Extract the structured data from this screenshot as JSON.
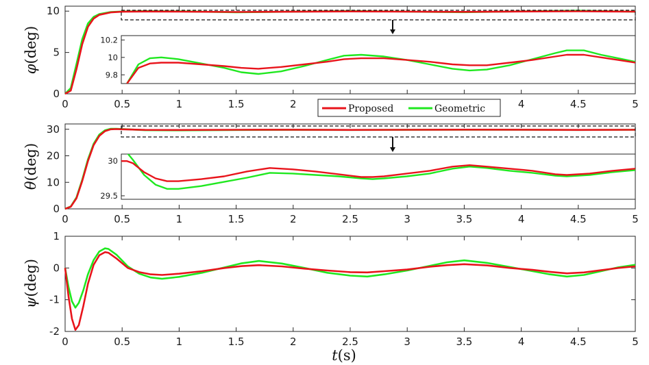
{
  "colors": {
    "proposed": "#e8141b",
    "geometric": "#1fe81f"
  },
  "chart_data": [
    {
      "type": "line",
      "ylabel_symbol": "φ",
      "ylabel_unit": "(deg)",
      "xlim": [
        0,
        5
      ],
      "ylim": [
        0,
        10.6
      ],
      "xticks": [
        "0",
        "0.5",
        "1",
        "1.5",
        "2",
        "2.5",
        "3",
        "3.5",
        "4",
        "4.5",
        "5"
      ],
      "yticks": [
        "0",
        "5",
        "10"
      ],
      "x": [
        0,
        0.05,
        0.1,
        0.15,
        0.2,
        0.25,
        0.3,
        0.4,
        0.5,
        0.7,
        1,
        1.5,
        2,
        2.5,
        3,
        3.5,
        4,
        4.5,
        5
      ],
      "series": [
        {
          "name": "Proposed",
          "values": [
            0,
            0.4,
            3.0,
            6.0,
            8.1,
            9.1,
            9.55,
            9.85,
            9.93,
            9.95,
            9.94,
            9.9,
            9.93,
            9.96,
            9.94,
            9.91,
            9.95,
            9.98,
            9.94
          ]
        },
        {
          "name": "Geometric",
          "values": [
            0,
            0.7,
            3.6,
            6.6,
            8.5,
            9.3,
            9.65,
            9.9,
            9.95,
            10.0,
            9.97,
            9.86,
            9.93,
            10.02,
            9.94,
            9.87,
            9.97,
            10.05,
            9.93
          ]
        }
      ],
      "inset": {
        "xlim": [
          0.5,
          5
        ],
        "ylim": [
          9.7,
          10.25
        ],
        "yticks": [
          "9.8",
          "10",
          "10.2"
        ],
        "x": [
          0.55,
          0.65,
          0.75,
          0.85,
          1.0,
          1.2,
          1.4,
          1.55,
          1.7,
          1.9,
          2.1,
          2.3,
          2.45,
          2.6,
          2.8,
          3.0,
          3.2,
          3.4,
          3.55,
          3.7,
          3.9,
          4.1,
          4.3,
          4.4,
          4.55,
          4.7,
          4.85,
          5.0
        ],
        "proposed": [
          9.7,
          9.88,
          9.93,
          9.94,
          9.94,
          9.92,
          9.9,
          9.88,
          9.87,
          9.89,
          9.92,
          9.95,
          9.98,
          9.99,
          9.99,
          9.97,
          9.95,
          9.92,
          9.91,
          9.91,
          9.94,
          9.97,
          10.01,
          10.03,
          10.03,
          10.0,
          9.97,
          9.94
        ],
        "geometric": [
          9.7,
          9.92,
          9.99,
          10.0,
          9.98,
          9.93,
          9.88,
          9.83,
          9.81,
          9.84,
          9.9,
          9.97,
          10.02,
          10.03,
          10.01,
          9.97,
          9.92,
          9.87,
          9.85,
          9.86,
          9.91,
          9.98,
          10.05,
          10.08,
          10.08,
          10.03,
          9.99,
          9.95
        ]
      }
    },
    {
      "type": "line",
      "ylabel_symbol": "θ",
      "ylabel_unit": "(deg)",
      "xlim": [
        0,
        5
      ],
      "ylim": [
        0,
        32
      ],
      "xticks": [
        "0",
        "0.5",
        "1",
        "1.5",
        "2",
        "2.5",
        "3",
        "3.5",
        "4",
        "4.5",
        "5"
      ],
      "yticks": [
        "0",
        "10",
        "20",
        "30"
      ],
      "x": [
        0,
        0.05,
        0.1,
        0.15,
        0.2,
        0.25,
        0.3,
        0.35,
        0.4,
        0.45,
        0.5,
        0.7,
        1,
        1.5,
        2,
        2.5,
        3,
        3.5,
        4,
        4.5,
        5
      ],
      "series": [
        {
          "name": "Proposed",
          "values": [
            0,
            0.8,
            4.0,
            10.5,
            18.0,
            24.0,
            27.5,
            29.3,
            30.0,
            30.1,
            30.0,
            29.75,
            29.73,
            29.8,
            29.82,
            29.76,
            29.8,
            29.86,
            29.82,
            29.76,
            29.81
          ]
        },
        {
          "name": "Geometric",
          "values": [
            0,
            0.9,
            4.3,
            11.0,
            18.6,
            24.5,
            28.0,
            29.6,
            30.2,
            30.2,
            30.1,
            29.65,
            29.6,
            29.74,
            29.78,
            29.72,
            29.77,
            29.84,
            29.8,
            29.74,
            29.8
          ]
        }
      ],
      "inset": {
        "xlim": [
          0.5,
          5
        ],
        "ylim": [
          29.45,
          30.1
        ],
        "yticks": [
          "29.5",
          "30"
        ],
        "x": [
          0.5,
          0.55,
          0.6,
          0.7,
          0.8,
          0.9,
          1.0,
          1.2,
          1.4,
          1.6,
          1.8,
          2.0,
          2.2,
          2.4,
          2.6,
          2.7,
          2.8,
          3.0,
          3.2,
          3.4,
          3.55,
          3.7,
          3.9,
          4.1,
          4.3,
          4.4,
          4.6,
          4.8,
          5.0
        ],
        "proposed": [
          30.0,
          30.0,
          29.97,
          29.84,
          29.75,
          29.71,
          29.71,
          29.74,
          29.78,
          29.85,
          29.9,
          29.88,
          29.85,
          29.81,
          29.77,
          29.77,
          29.78,
          29.82,
          29.86,
          29.92,
          29.94,
          29.92,
          29.89,
          29.86,
          29.81,
          29.8,
          29.82,
          29.86,
          29.89
        ],
        "geometric": [
          30.2,
          30.12,
          30.02,
          29.8,
          29.66,
          29.6,
          29.6,
          29.64,
          29.7,
          29.76,
          29.83,
          29.82,
          29.8,
          29.78,
          29.75,
          29.74,
          29.75,
          29.78,
          29.82,
          29.89,
          29.92,
          29.9,
          29.86,
          29.83,
          29.79,
          29.78,
          29.8,
          29.84,
          29.87
        ]
      }
    },
    {
      "type": "line",
      "ylabel_symbol": "ψ",
      "ylabel_unit": "(deg)",
      "xlabel_symbol": "t",
      "xlabel_unit": "(s)",
      "xlim": [
        0,
        5
      ],
      "ylim": [
        -2,
        1
      ],
      "xticks": [
        "0",
        "0.5",
        "1",
        "1.5",
        "2",
        "2.5",
        "3",
        "3.5",
        "4",
        "4.5",
        "5"
      ],
      "yticks": [
        "-2",
        "-1",
        "0",
        "1"
      ],
      "x": [
        0,
        0.03,
        0.06,
        0.09,
        0.12,
        0.16,
        0.2,
        0.25,
        0.3,
        0.35,
        0.38,
        0.45,
        0.55,
        0.65,
        0.75,
        0.85,
        1.0,
        1.2,
        1.4,
        1.55,
        1.7,
        1.9,
        2.1,
        2.3,
        2.5,
        2.65,
        2.8,
        3.0,
        3.2,
        3.35,
        3.5,
        3.7,
        3.9,
        4.1,
        4.25,
        4.4,
        4.55,
        4.7,
        4.85,
        5.0
      ],
      "series": [
        {
          "name": "Proposed",
          "values": [
            0,
            -0.9,
            -1.6,
            -1.95,
            -1.8,
            -1.2,
            -0.5,
            0.1,
            0.4,
            0.5,
            0.48,
            0.3,
            0.0,
            -0.13,
            -0.2,
            -0.22,
            -0.18,
            -0.1,
            0.0,
            0.06,
            0.09,
            0.05,
            -0.02,
            -0.08,
            -0.13,
            -0.14,
            -0.1,
            -0.05,
            0.04,
            0.09,
            0.12,
            0.08,
            0.0,
            -0.06,
            -0.12,
            -0.17,
            -0.14,
            -0.07,
            0.0,
            0.05
          ]
        },
        {
          "name": "Geometric",
          "values": [
            0,
            -0.6,
            -1.05,
            -1.25,
            -1.1,
            -0.7,
            -0.2,
            0.25,
            0.52,
            0.62,
            0.6,
            0.42,
            0.05,
            -0.18,
            -0.3,
            -0.34,
            -0.28,
            -0.15,
            0.02,
            0.15,
            0.22,
            0.14,
            0.0,
            -0.15,
            -0.24,
            -0.27,
            -0.2,
            -0.08,
            0.07,
            0.18,
            0.24,
            0.16,
            0.03,
            -0.1,
            -0.2,
            -0.27,
            -0.22,
            -0.1,
            0.02,
            0.1
          ]
        }
      ]
    }
  ]
}
